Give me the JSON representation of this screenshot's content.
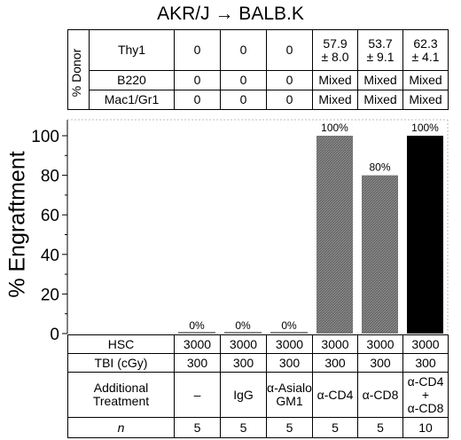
{
  "title": "AKR/J → BALB.K",
  "donor_table": {
    "group_label": "% Donor",
    "rows": [
      {
        "label": "Thy1",
        "cells": [
          "0",
          "0",
          "0",
          "57.9\n± 8.0",
          "53.7\n± 9.1",
          "62.3\n± 4.1"
        ]
      },
      {
        "label": "B220",
        "cells": [
          "0",
          "0",
          "0",
          "Mixed",
          "Mixed",
          "Mixed"
        ]
      },
      {
        "label": "Mac1/Gr1",
        "cells": [
          "0",
          "0",
          "0",
          "Mixed",
          "Mixed",
          "Mixed"
        ]
      }
    ]
  },
  "bottom_table": {
    "rows": [
      {
        "label": "HSC",
        "cells": [
          "3000",
          "3000",
          "3000",
          "3000",
          "3000",
          "3000"
        ]
      },
      {
        "label": "TBI (cGy)",
        "cells": [
          "300",
          "300",
          "300",
          "300",
          "300",
          "300"
        ]
      },
      {
        "label": "Additional\nTreatment",
        "cells": [
          "–",
          "IgG",
          "α-Asialo\nGM1",
          "α-CD4",
          "α-CD8",
          "α-CD4\n+\nα-CD8"
        ]
      },
      {
        "label": "n",
        "cells": [
          "5",
          "5",
          "5",
          "5",
          "5",
          "10"
        ]
      }
    ]
  },
  "chart_data": {
    "type": "bar",
    "categories": [
      "–",
      "IgG",
      "α-Asialo GM1",
      "α-CD4",
      "α-CD8",
      "α-CD4 + α-CD8"
    ],
    "values": [
      0,
      0,
      0,
      100,
      80,
      100
    ],
    "data_labels": [
      "0%",
      "0%",
      "0%",
      "100%",
      "80%",
      "100%"
    ],
    "bar_colors": [
      "#8a8a8a",
      "#8a8a8a",
      "#8a8a8a",
      "#8a8a8a",
      "#8a8a8a",
      "#000000"
    ],
    "ylabel": "% Engraftment",
    "ylim": [
      0,
      100
    ],
    "yticks": [
      0,
      20,
      40,
      60,
      80,
      100
    ],
    "grid": false
  }
}
